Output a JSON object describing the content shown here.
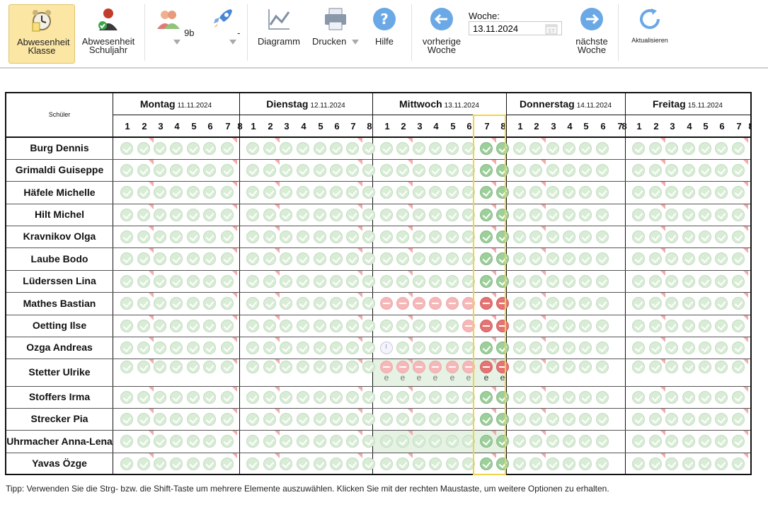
{
  "toolbar": {
    "abwesenheit_klasse": "Abwesenheit Klasse",
    "abwesenheit_schuljahr": "Abwesenheit Schuljahr",
    "klasse_value": "9b",
    "gruppe_value": "-",
    "diagramm": "Diagramm",
    "drucken": "Drucken",
    "hilfe": "Hilfe",
    "vorherige_woche": "vorherige Woche",
    "woche_label": "Woche:",
    "woche_value": "13.11.2024",
    "naechste_woche": "nächste Woche",
    "aktualisieren": "Aktualisieren"
  },
  "grid": {
    "schueler_header": "Schüler",
    "days": [
      {
        "name": "Montag",
        "date": "11.11.2024"
      },
      {
        "name": "Dienstag",
        "date": "12.11.2024"
      },
      {
        "name": "Mittwoch",
        "date": "13.11.2024"
      },
      {
        "name": "Donnerstag",
        "date": "14.11.2024"
      },
      {
        "name": "Freitag",
        "date": "15.11.2024"
      }
    ],
    "periods": [
      "1",
      "2",
      "3",
      "4",
      "5",
      "6",
      "7",
      "8"
    ],
    "selected_periods": [
      {
        "day": "Mittwoch",
        "periods": [
          "7",
          "8"
        ]
      }
    ],
    "students": [
      "Burg Dennis",
      "Grimaldi Guiseppe",
      "Häfele Michelle",
      "Hilt Michel",
      "Kravnikov Olga",
      "Laube Bodo",
      "Lüderssen Lina",
      "Mathes Bastian",
      "Oetting Ilse",
      "Ozga Andreas",
      "Stetter Ulrike",
      "Stoffers Irma",
      "Strecker Pia",
      "Uhrmacher Anna-Lena",
      "Yavas Özge"
    ],
    "special_marks": [
      {
        "student": "Mathes Bastian",
        "day": "Mittwoch",
        "periods": [
          "1",
          "2",
          "3",
          "4",
          "5",
          "6",
          "7",
          "8"
        ],
        "status": "abwesend"
      },
      {
        "student": "Oetting Ilse",
        "day": "Mittwoch",
        "periods": [
          "6",
          "7",
          "8"
        ],
        "status": "abwesend"
      },
      {
        "student": "Ozga Andreas",
        "day": "Mittwoch",
        "periods": [
          "1"
        ],
        "status": "verspätet"
      },
      {
        "student": "Stetter Ulrike",
        "day": "Mittwoch",
        "periods": [
          "1",
          "2",
          "3",
          "4",
          "5",
          "6",
          "7",
          "8"
        ],
        "status": "abwesend",
        "note": "e"
      }
    ],
    "excuse_mark": "e"
  },
  "tip": "Tipp: Verwenden Sie die Strg- bzw. die Shift-Taste um mehrere Elemente auszuwählen. Klicken Sie mit der rechten Maustaste, um weitere Optionen zu erhalten.",
  "colors": {
    "present": "#d8ecd6",
    "present_selected": "#9ccf9a",
    "absent": "#f5b7b7",
    "absent_selected": "#e57373",
    "active_button": "#fbe6a4",
    "selection_border": "#f0d24c"
  },
  "icons": [
    "alarm-clock-icon",
    "student-check-icon",
    "people-icon",
    "rocket-icon",
    "line-chart-icon",
    "printer-icon",
    "help-icon",
    "arrow-left-icon",
    "calendar-icon",
    "arrow-right-icon",
    "refresh-icon"
  ]
}
